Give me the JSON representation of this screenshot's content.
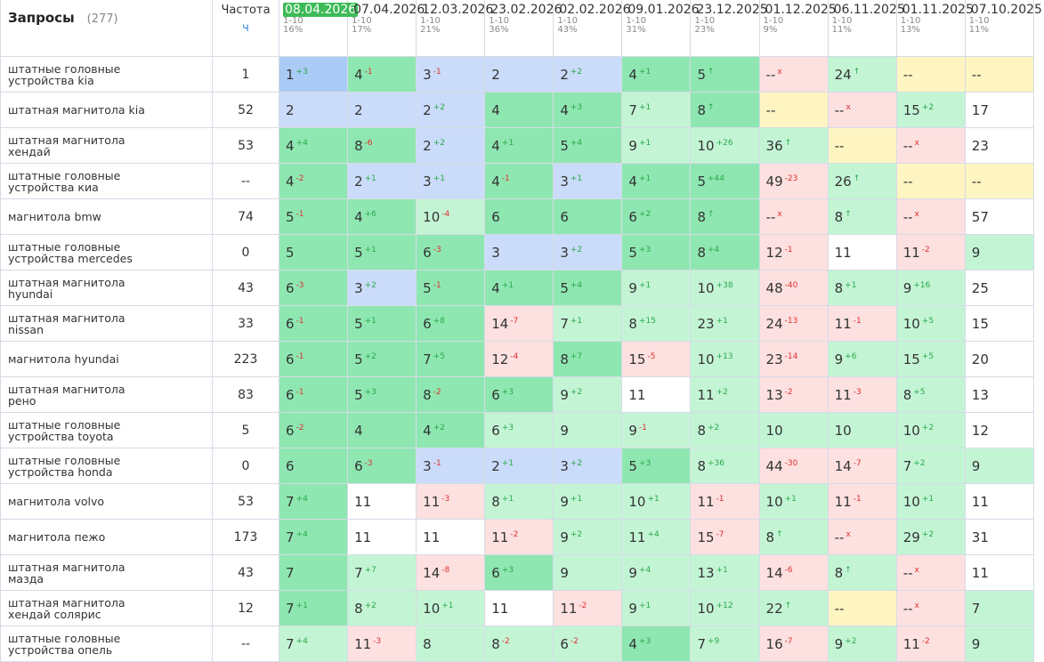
{
  "header": {
    "title": "Запросы",
    "count": "(277)",
    "freq_label": "Частота",
    "freq_unit": "ч"
  },
  "columns": [
    {
      "date": "08.04.2026",
      "range": "1-10",
      "share": "16%",
      "current": true
    },
    {
      "date": "07.04.2026",
      "range": "1-10",
      "share": "17%"
    },
    {
      "date": "12.03.2026",
      "range": "1-10",
      "share": "21%"
    },
    {
      "date": "23.02.2026",
      "range": "1-10",
      "share": "36%"
    },
    {
      "date": "02.02.2026",
      "range": "1-10",
      "share": "43%"
    },
    {
      "date": "09.01.2026",
      "range": "1-10",
      "share": "31%"
    },
    {
      "date": "23.12.2025",
      "range": "1-10",
      "share": "23%"
    },
    {
      "date": "01.12.2025",
      "range": "1-10",
      "share": "9%"
    },
    {
      "date": "06.11.2025",
      "range": "1-10",
      "share": "11%"
    },
    {
      "date": "01.11.2025",
      "range": "1-10",
      "share": "13%"
    },
    {
      "date": "07.10.2025",
      "range": "1-10",
      "share": "11%"
    }
  ],
  "rows": [
    {
      "query": "штатные головные устройства kia",
      "freq": "1",
      "cells": [
        [
          "1",
          "+3",
          "#aacbf6"
        ],
        [
          "4",
          "-1",
          "#8ee7b1"
        ],
        [
          "3",
          "-1",
          "#cadcf9"
        ],
        [
          "2",
          null,
          "#cadcf9"
        ],
        [
          "2",
          "+2",
          "#cadcf9"
        ],
        [
          "4",
          "+1",
          "#8ee7b1"
        ],
        [
          "5",
          "↑",
          "#8ee7b1"
        ],
        [
          "--",
          "x",
          "#fde0e0"
        ],
        [
          "24",
          "↑",
          "#c3f5d5"
        ],
        [
          "--",
          null,
          "#fef5c2"
        ],
        [
          "--",
          null,
          "#fef5c2"
        ]
      ]
    },
    {
      "query": "штатная магнитола kia",
      "freq": "52",
      "cells": [
        [
          "2",
          null,
          "#cadcf9"
        ],
        [
          "2",
          null,
          "#cadcf9"
        ],
        [
          "2",
          "+2",
          "#cadcf9"
        ],
        [
          "4",
          null,
          "#8ee7b1"
        ],
        [
          "4",
          "+3",
          "#8ee7b1"
        ],
        [
          "7",
          "+1",
          "#c3f5d5"
        ],
        [
          "8",
          "↑",
          "#8ee7b1"
        ],
        [
          "--",
          null,
          "#fef5c2"
        ],
        [
          "--",
          "x",
          "#fde0e0"
        ],
        [
          "15",
          "+2",
          "#c3f5d5"
        ],
        [
          "17",
          null,
          "#ffffff"
        ]
      ]
    },
    {
      "query": "штатная магнитола хендай",
      "freq": "53",
      "cells": [
        [
          "4",
          "+4",
          "#8ee7b1"
        ],
        [
          "8",
          "-6",
          "#8ee7b1"
        ],
        [
          "2",
          "+2",
          "#cadcf9"
        ],
        [
          "4",
          "+1",
          "#8ee7b1"
        ],
        [
          "5",
          "+4",
          "#8ee7b1"
        ],
        [
          "9",
          "+1",
          "#c3f5d5"
        ],
        [
          "10",
          "+26",
          "#c3f5d5"
        ],
        [
          "36",
          "↑",
          "#c3f5d5"
        ],
        [
          "--",
          null,
          "#fef5c2"
        ],
        [
          "--",
          "x",
          "#fde0e0"
        ],
        [
          "23",
          null,
          "#ffffff"
        ]
      ]
    },
    {
      "query": "штатные головные устройства киа",
      "freq": "--",
      "cells": [
        [
          "4",
          "-2",
          "#8ee7b1"
        ],
        [
          "2",
          "+1",
          "#cadcf9"
        ],
        [
          "3",
          "+1",
          "#cadcf9"
        ],
        [
          "4",
          "-1",
          "#8ee7b1"
        ],
        [
          "3",
          "+1",
          "#cadcf9"
        ],
        [
          "4",
          "+1",
          "#8ee7b1"
        ],
        [
          "5",
          "+44",
          "#8ee7b1"
        ],
        [
          "49",
          "-23",
          "#fde0e0"
        ],
        [
          "26",
          "↑",
          "#c3f5d5"
        ],
        [
          "--",
          null,
          "#fef5c2"
        ],
        [
          "--",
          null,
          "#fef5c2"
        ]
      ]
    },
    {
      "query": "магнитола bmw",
      "freq": "74",
      "cells": [
        [
          "5",
          "-1",
          "#8ee7b1"
        ],
        [
          "4",
          "+6",
          "#8ee7b1"
        ],
        [
          "10",
          "-4",
          "#c3f5d5"
        ],
        [
          "6",
          null,
          "#8ee7b1"
        ],
        [
          "6",
          null,
          "#8ee7b1"
        ],
        [
          "6",
          "+2",
          "#8ee7b1"
        ],
        [
          "8",
          "↑",
          "#8ee7b1"
        ],
        [
          "--",
          "x",
          "#fde0e0"
        ],
        [
          "8",
          "↑",
          "#c3f5d5"
        ],
        [
          "--",
          "x",
          "#fde0e0"
        ],
        [
          "57",
          null,
          "#ffffff"
        ]
      ]
    },
    {
      "query": "штатные головные устройства mercedes",
      "freq": "0",
      "cells": [
        [
          "5",
          null,
          "#8ee7b1"
        ],
        [
          "5",
          "+1",
          "#8ee7b1"
        ],
        [
          "6",
          "-3",
          "#8ee7b1"
        ],
        [
          "3",
          null,
          "#cadcf9"
        ],
        [
          "3",
          "+2",
          "#cadcf9"
        ],
        [
          "5",
          "+3",
          "#8ee7b1"
        ],
        [
          "8",
          "+4",
          "#8ee7b1"
        ],
        [
          "12",
          "-1",
          "#fde0e0"
        ],
        [
          "11",
          null,
          "#ffffff"
        ],
        [
          "11",
          "-2",
          "#fde0e0"
        ],
        [
          "9",
          null,
          "#c3f5d5"
        ]
      ]
    },
    {
      "query": "штатная магнитола hyundai",
      "freq": "43",
      "cells": [
        [
          "6",
          "-3",
          "#8ee7b1"
        ],
        [
          "3",
          "+2",
          "#cadcf9"
        ],
        [
          "5",
          "-1",
          "#8ee7b1"
        ],
        [
          "4",
          "+1",
          "#8ee7b1"
        ],
        [
          "5",
          "+4",
          "#8ee7b1"
        ],
        [
          "9",
          "+1",
          "#c3f5d5"
        ],
        [
          "10",
          "+38",
          "#c3f5d5"
        ],
        [
          "48",
          "-40",
          "#fde0e0"
        ],
        [
          "8",
          "+1",
          "#c3f5d5"
        ],
        [
          "9",
          "+16",
          "#c3f5d5"
        ],
        [
          "25",
          null,
          "#ffffff"
        ]
      ]
    },
    {
      "query": "штатная магнитола nissan",
      "freq": "33",
      "cells": [
        [
          "6",
          "-1",
          "#8ee7b1"
        ],
        [
          "5",
          "+1",
          "#8ee7b1"
        ],
        [
          "6",
          "+8",
          "#8ee7b1"
        ],
        [
          "14",
          "-7",
          "#fde0e0"
        ],
        [
          "7",
          "+1",
          "#c3f5d5"
        ],
        [
          "8",
          "+15",
          "#c3f5d5"
        ],
        [
          "23",
          "+1",
          "#c3f5d5"
        ],
        [
          "24",
          "-13",
          "#fde0e0"
        ],
        [
          "11",
          "-1",
          "#fde0e0"
        ],
        [
          "10",
          "+5",
          "#c3f5d5"
        ],
        [
          "15",
          null,
          "#ffffff"
        ]
      ]
    },
    {
      "query": "магнитола hyundai",
      "freq": "223",
      "cells": [
        [
          "6",
          "-1",
          "#8ee7b1"
        ],
        [
          "5",
          "+2",
          "#8ee7b1"
        ],
        [
          "7",
          "+5",
          "#8ee7b1"
        ],
        [
          "12",
          "-4",
          "#fde0e0"
        ],
        [
          "8",
          "+7",
          "#8ee7b1"
        ],
        [
          "15",
          "-5",
          "#fde0e0"
        ],
        [
          "10",
          "+13",
          "#c3f5d5"
        ],
        [
          "23",
          "-14",
          "#fde0e0"
        ],
        [
          "9",
          "+6",
          "#c3f5d5"
        ],
        [
          "15",
          "+5",
          "#c3f5d5"
        ],
        [
          "20",
          null,
          "#ffffff"
        ]
      ]
    },
    {
      "query": "штатная магнитола рено",
      "freq": "83",
      "cells": [
        [
          "6",
          "-1",
          "#8ee7b1"
        ],
        [
          "5",
          "+3",
          "#8ee7b1"
        ],
        [
          "8",
          "-2",
          "#8ee7b1"
        ],
        [
          "6",
          "+3",
          "#8ee7b1"
        ],
        [
          "9",
          "+2",
          "#c3f5d5"
        ],
        [
          "11",
          null,
          "#ffffff"
        ],
        [
          "11",
          "+2",
          "#c3f5d5"
        ],
        [
          "13",
          "-2",
          "#fde0e0"
        ],
        [
          "11",
          "-3",
          "#fde0e0"
        ],
        [
          "8",
          "+5",
          "#c3f5d5"
        ],
        [
          "13",
          null,
          "#ffffff"
        ]
      ]
    },
    {
      "query": "штатные головные устройства toyota",
      "freq": "5",
      "cells": [
        [
          "6",
          "-2",
          "#8ee7b1"
        ],
        [
          "4",
          null,
          "#8ee7b1"
        ],
        [
          "4",
          "+2",
          "#8ee7b1"
        ],
        [
          "6",
          "+3",
          "#c3f5d5"
        ],
        [
          "9",
          null,
          "#c3f5d5"
        ],
        [
          "9",
          "-1",
          "#c3f5d5"
        ],
        [
          "8",
          "+2",
          "#c3f5d5"
        ],
        [
          "10",
          null,
          "#c3f5d5"
        ],
        [
          "10",
          null,
          "#c3f5d5"
        ],
        [
          "10",
          "+2",
          "#c3f5d5"
        ],
        [
          "12",
          null,
          "#ffffff"
        ]
      ]
    },
    {
      "query": "штатные головные устройства honda",
      "freq": "0",
      "cells": [
        [
          "6",
          null,
          "#8ee7b1"
        ],
        [
          "6",
          "-3",
          "#8ee7b1"
        ],
        [
          "3",
          "-1",
          "#cadcf9"
        ],
        [
          "2",
          "+1",
          "#cadcf9"
        ],
        [
          "3",
          "+2",
          "#cadcf9"
        ],
        [
          "5",
          "+3",
          "#8ee7b1"
        ],
        [
          "8",
          "+36",
          "#c3f5d5"
        ],
        [
          "44",
          "-30",
          "#fde0e0"
        ],
        [
          "14",
          "-7",
          "#fde0e0"
        ],
        [
          "7",
          "+2",
          "#c3f5d5"
        ],
        [
          "9",
          null,
          "#c3f5d5"
        ]
      ]
    },
    {
      "query": "магнитола volvo",
      "freq": "53",
      "cells": [
        [
          "7",
          "+4",
          "#8ee7b1"
        ],
        [
          "11",
          null,
          "#ffffff"
        ],
        [
          "11",
          "-3",
          "#fde0e0"
        ],
        [
          "8",
          "+1",
          "#c3f5d5"
        ],
        [
          "9",
          "+1",
          "#c3f5d5"
        ],
        [
          "10",
          "+1",
          "#c3f5d5"
        ],
        [
          "11",
          "-1",
          "#fde0e0"
        ],
        [
          "10",
          "+1",
          "#c3f5d5"
        ],
        [
          "11",
          "-1",
          "#fde0e0"
        ],
        [
          "10",
          "+1",
          "#c3f5d5"
        ],
        [
          "11",
          null,
          "#ffffff"
        ]
      ]
    },
    {
      "query": "магнитола пежо",
      "freq": "173",
      "cells": [
        [
          "7",
          "+4",
          "#8ee7b1"
        ],
        [
          "11",
          null,
          "#ffffff"
        ],
        [
          "11",
          null,
          "#ffffff"
        ],
        [
          "11",
          "-2",
          "#fde0e0"
        ],
        [
          "9",
          "+2",
          "#c3f5d5"
        ],
        [
          "11",
          "+4",
          "#c3f5d5"
        ],
        [
          "15",
          "-7",
          "#fde0e0"
        ],
        [
          "8",
          "↑",
          "#c3f5d5"
        ],
        [
          "--",
          "x",
          "#fde0e0"
        ],
        [
          "29",
          "+2",
          "#c3f5d5"
        ],
        [
          "31",
          null,
          "#ffffff"
        ]
      ]
    },
    {
      "query": "штатная магнитола мазда",
      "freq": "43",
      "cells": [
        [
          "7",
          null,
          "#8ee7b1"
        ],
        [
          "7",
          "+7",
          "#c3f5d5"
        ],
        [
          "14",
          "-8",
          "#fde0e0"
        ],
        [
          "6",
          "+3",
          "#8ee7b1"
        ],
        [
          "9",
          null,
          "#c3f5d5"
        ],
        [
          "9",
          "+4",
          "#c3f5d5"
        ],
        [
          "13",
          "+1",
          "#c3f5d5"
        ],
        [
          "14",
          "-6",
          "#fde0e0"
        ],
        [
          "8",
          "↑",
          "#c3f5d5"
        ],
        [
          "--",
          "x",
          "#fde0e0"
        ],
        [
          "11",
          null,
          "#ffffff"
        ]
      ]
    },
    {
      "query": "штатная магнитола хендай солярис",
      "freq": "12",
      "cells": [
        [
          "7",
          "+1",
          "#8ee7b1"
        ],
        [
          "8",
          "+2",
          "#c3f5d5"
        ],
        [
          "10",
          "+1",
          "#c3f5d5"
        ],
        [
          "11",
          null,
          "#ffffff"
        ],
        [
          "11",
          "-2",
          "#fde0e0"
        ],
        [
          "9",
          "+1",
          "#c3f5d5"
        ],
        [
          "10",
          "+12",
          "#c3f5d5"
        ],
        [
          "22",
          "↑",
          "#c3f5d5"
        ],
        [
          "--",
          null,
          "#fef5c2"
        ],
        [
          "--",
          "x",
          "#fde0e0"
        ],
        [
          "7",
          null,
          "#c3f5d5"
        ]
      ]
    },
    {
      "query": "штатные головные устройства опель",
      "freq": "--",
      "cells": [
        [
          "7",
          "+4",
          "#c3f5d5"
        ],
        [
          "11",
          "-3",
          "#fde0e0"
        ],
        [
          "8",
          null,
          "#c3f5d5"
        ],
        [
          "8",
          "-2",
          "#c3f5d5"
        ],
        [
          "6",
          "-2",
          "#c3f5d5"
        ],
        [
          "4",
          "+3",
          "#8ee7b1"
        ],
        [
          "7",
          "+9",
          "#c3f5d5"
        ],
        [
          "16",
          "-7",
          "#fde0e0"
        ],
        [
          "9",
          "+2",
          "#c3f5d5"
        ],
        [
          "11",
          "-2",
          "#fde0e0"
        ],
        [
          "9",
          null,
          "#c3f5d5"
        ]
      ]
    }
  ]
}
